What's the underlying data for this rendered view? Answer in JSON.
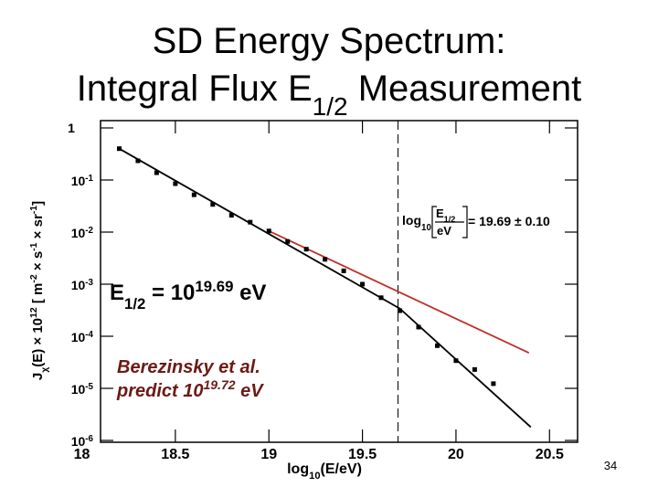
{
  "chart_data": {
    "type": "scatter",
    "title": {
      "line1": "SD Energy Spectrum:",
      "line2": "Integral Flux E",
      "line2_sub": "1/2",
      "line2_end": " Measurement"
    },
    "xlabel": {
      "text": "log",
      "sub": "10",
      "end": "(E/eV)"
    },
    "ylabel": {
      "p1": "J",
      "p1_sub": "χ",
      "p2": "(E) × 10",
      "p2_sup": "12",
      "p3": " [ m",
      "p3_sup": "-2",
      "p4": " × s",
      "p4_sup": "-1",
      "p5": " × sr",
      "p5_sup": "-1",
      "p6": "]"
    },
    "xlim": [
      18.1,
      20.65
    ],
    "xticks": [
      18,
      18.5,
      19,
      19.5,
      20,
      20.5
    ],
    "ylim": [
      1e-06,
      1
    ],
    "ylog": true,
    "yticks": [
      1,
      {
        "value": 0.1,
        "label": "10",
        "exp": "-1"
      },
      {
        "value": 0.01,
        "label": "10",
        "exp": "-2"
      },
      {
        "value": 0.001,
        "label": "10",
        "exp": "-3"
      },
      {
        "value": 0.0001,
        "label": "10",
        "exp": "-4"
      },
      {
        "value": 1e-05,
        "label": "10",
        "exp": "-5"
      },
      {
        "value": 1e-06,
        "label": "10",
        "exp": "-6"
      }
    ],
    "x": [
      18.2,
      18.3,
      18.4,
      18.5,
      18.6,
      18.7,
      18.8,
      18.9,
      19.0,
      19.1,
      19.2,
      19.3,
      19.4,
      19.5,
      19.6,
      19.7,
      19.8,
      19.9,
      20.0,
      20.1,
      20.2
    ],
    "values": [
      0.4,
      0.234,
      0.138,
      0.085,
      0.052,
      0.034,
      0.021,
      0.0155,
      0.0105,
      0.0066,
      0.0047,
      0.003,
      0.0018,
      0.001,
      0.00055,
      0.00031,
      0.00015,
      6.6e-05,
      3.4e-05,
      2.3e-05,
      1.23e-05
    ],
    "color": "#000000",
    "lines": [
      {
        "color": "#000000",
        "x": [
          18.2,
          19.7,
          20.4
        ],
        "values": [
          0.4,
          0.00034,
          1.8e-06
        ]
      },
      {
        "color": "#c0302a",
        "x": [
          19.0,
          20.39
        ],
        "values": [
          0.0105,
          4.8e-05
        ]
      }
    ],
    "vline": 19.69,
    "annotations": {
      "half": {
        "a": "E",
        "a_sub": "1/2",
        "b": " = 10",
        "b_sup": "19.69",
        "c": " eV"
      },
      "fit": {
        "a": "log",
        "a_sub": "10",
        "num": "E",
        "num_sub": "1/2",
        "den": "eV",
        "b": " = 19.69 ± 0.10"
      },
      "bere1": "Berezinsky et al.",
      "bere2": {
        "a": "predict 10",
        "a_sup": "19.72",
        "b": " eV"
      }
    },
    "page_number": "34"
  }
}
